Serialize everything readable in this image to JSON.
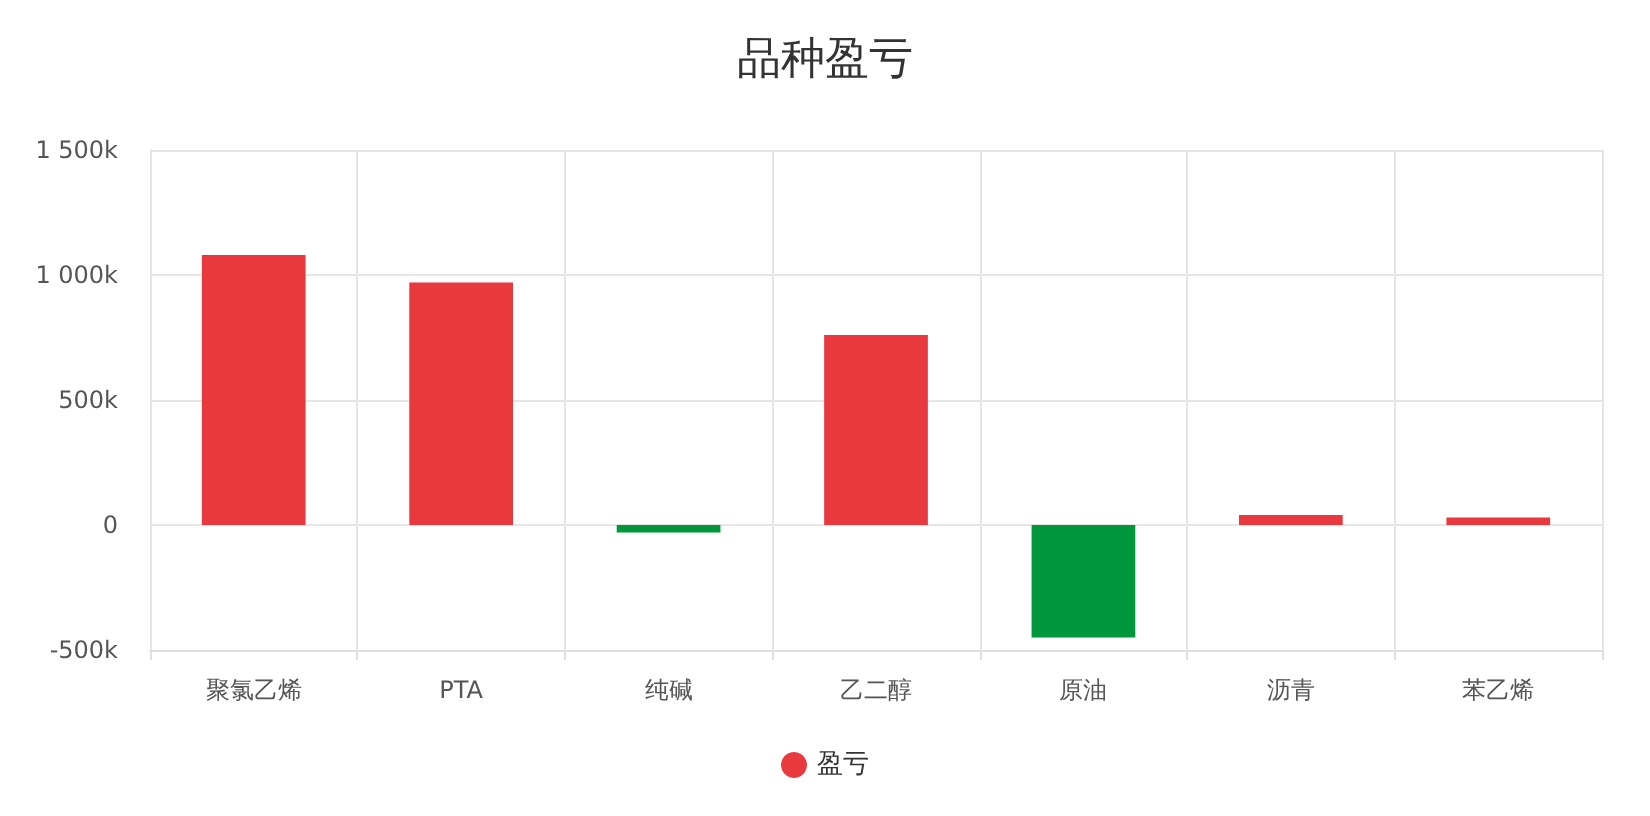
{
  "chart_data": {
    "type": "bar",
    "title": "品种盈亏",
    "categories": [
      "聚氯乙烯",
      "PTA",
      "纯碱",
      "乙二醇",
      "原油",
      "沥青",
      "苯乙烯"
    ],
    "series": [
      {
        "name": "盈亏",
        "color": "#e8393f",
        "colors": [
          "#e8393f",
          "#e8393f",
          "#00963c",
          "#e8393f",
          "#00963c",
          "#e8393f",
          "#e8393f"
        ],
        "values": [
          1080000,
          970000,
          -30000,
          760000,
          -450000,
          40000,
          30000
        ]
      }
    ],
    "ylim": [
      -500000,
      1500000
    ],
    "yticks": [
      {
        "value": -500000,
        "label": "-500k"
      },
      0,
      {
        "value": 500000,
        "label": "500k"
      },
      {
        "value": 1000000,
        "label": "1 000k"
      },
      {
        "value": 1500000,
        "label": "1 500k"
      }
    ],
    "grid": true,
    "legend": "bottom"
  }
}
